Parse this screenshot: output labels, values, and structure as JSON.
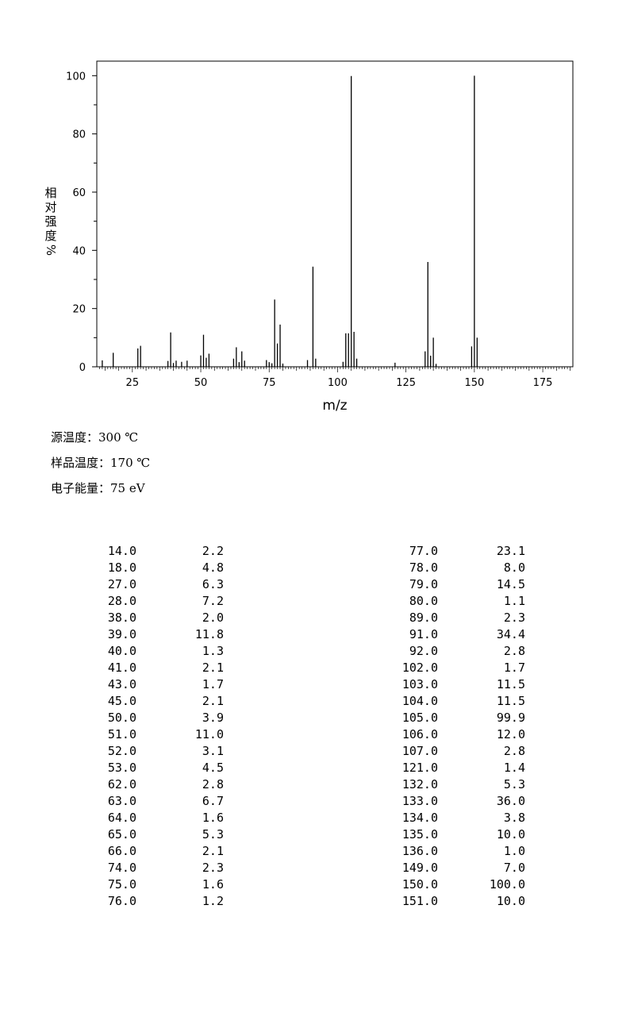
{
  "chart_data": {
    "type": "bar",
    "xlabel": "m/z",
    "ylabel_chars": [
      "相",
      "对",
      "强",
      "度"
    ],
    "ylabel_unit": "%",
    "xlim": [
      12,
      186
    ],
    "ylim": [
      0,
      105
    ],
    "x_ticks": [
      25,
      50,
      75,
      100,
      125,
      150,
      175
    ],
    "y_ticks": [
      0,
      20,
      40,
      60,
      80,
      100
    ],
    "grid": false,
    "peaks": [
      [
        14.0,
        2.2
      ],
      [
        18.0,
        4.8
      ],
      [
        27.0,
        6.3
      ],
      [
        28.0,
        7.2
      ],
      [
        38.0,
        2.0
      ],
      [
        39.0,
        11.8
      ],
      [
        40.0,
        1.3
      ],
      [
        41.0,
        2.1
      ],
      [
        43.0,
        1.7
      ],
      [
        45.0,
        2.1
      ],
      [
        50.0,
        3.9
      ],
      [
        51.0,
        11.0
      ],
      [
        52.0,
        3.1
      ],
      [
        53.0,
        4.5
      ],
      [
        62.0,
        2.8
      ],
      [
        63.0,
        6.7
      ],
      [
        64.0,
        1.6
      ],
      [
        65.0,
        5.3
      ],
      [
        66.0,
        2.1
      ],
      [
        74.0,
        2.3
      ],
      [
        75.0,
        1.6
      ],
      [
        76.0,
        1.2
      ],
      [
        77.0,
        23.1
      ],
      [
        78.0,
        8.0
      ],
      [
        79.0,
        14.5
      ],
      [
        80.0,
        1.1
      ],
      [
        89.0,
        2.3
      ],
      [
        91.0,
        34.4
      ],
      [
        92.0,
        2.8
      ],
      [
        102.0,
        1.7
      ],
      [
        103.0,
        11.5
      ],
      [
        104.0,
        11.5
      ],
      [
        105.0,
        99.9
      ],
      [
        106.0,
        12.0
      ],
      [
        107.0,
        2.8
      ],
      [
        121.0,
        1.4
      ],
      [
        132.0,
        5.3
      ],
      [
        133.0,
        36.0
      ],
      [
        134.0,
        3.8
      ],
      [
        135.0,
        10.0
      ],
      [
        136.0,
        1.0
      ],
      [
        149.0,
        7.0
      ],
      [
        150.0,
        100.0
      ],
      [
        151.0,
        10.0
      ]
    ]
  },
  "conditions": {
    "source_temp": "源温度：300 ℃",
    "sample_temp": "样品温度：170 ℃",
    "electron_energy": "电子能量：75 eV"
  },
  "peak_table": {
    "left": [
      [
        "14.0",
        "2.2"
      ],
      [
        "18.0",
        "4.8"
      ],
      [
        "27.0",
        "6.3"
      ],
      [
        "28.0",
        "7.2"
      ],
      [
        "38.0",
        "2.0"
      ],
      [
        "39.0",
        "11.8"
      ],
      [
        "40.0",
        "1.3"
      ],
      [
        "41.0",
        "2.1"
      ],
      [
        "43.0",
        "1.7"
      ],
      [
        "45.0",
        "2.1"
      ],
      [
        "50.0",
        "3.9"
      ],
      [
        "51.0",
        "11.0"
      ],
      [
        "52.0",
        "3.1"
      ],
      [
        "53.0",
        "4.5"
      ],
      [
        "62.0",
        "2.8"
      ],
      [
        "63.0",
        "6.7"
      ],
      [
        "64.0",
        "1.6"
      ],
      [
        "65.0",
        "5.3"
      ],
      [
        "66.0",
        "2.1"
      ],
      [
        "74.0",
        "2.3"
      ],
      [
        "75.0",
        "1.6"
      ],
      [
        "76.0",
        "1.2"
      ]
    ],
    "right": [
      [
        "77.0",
        "23.1"
      ],
      [
        "78.0",
        "8.0"
      ],
      [
        "79.0",
        "14.5"
      ],
      [
        "80.0",
        "1.1"
      ],
      [
        "89.0",
        "2.3"
      ],
      [
        "91.0",
        "34.4"
      ],
      [
        "92.0",
        "2.8"
      ],
      [
        "102.0",
        "1.7"
      ],
      [
        "103.0",
        "11.5"
      ],
      [
        "104.0",
        "11.5"
      ],
      [
        "105.0",
        "99.9"
      ],
      [
        "106.0",
        "12.0"
      ],
      [
        "107.0",
        "2.8"
      ],
      [
        "121.0",
        "1.4"
      ],
      [
        "132.0",
        "5.3"
      ],
      [
        "133.0",
        "36.0"
      ],
      [
        "134.0",
        "3.8"
      ],
      [
        "135.0",
        "10.0"
      ],
      [
        "136.0",
        "1.0"
      ],
      [
        "149.0",
        "7.0"
      ],
      [
        "150.0",
        "100.0"
      ],
      [
        "151.0",
        "10.0"
      ]
    ]
  }
}
